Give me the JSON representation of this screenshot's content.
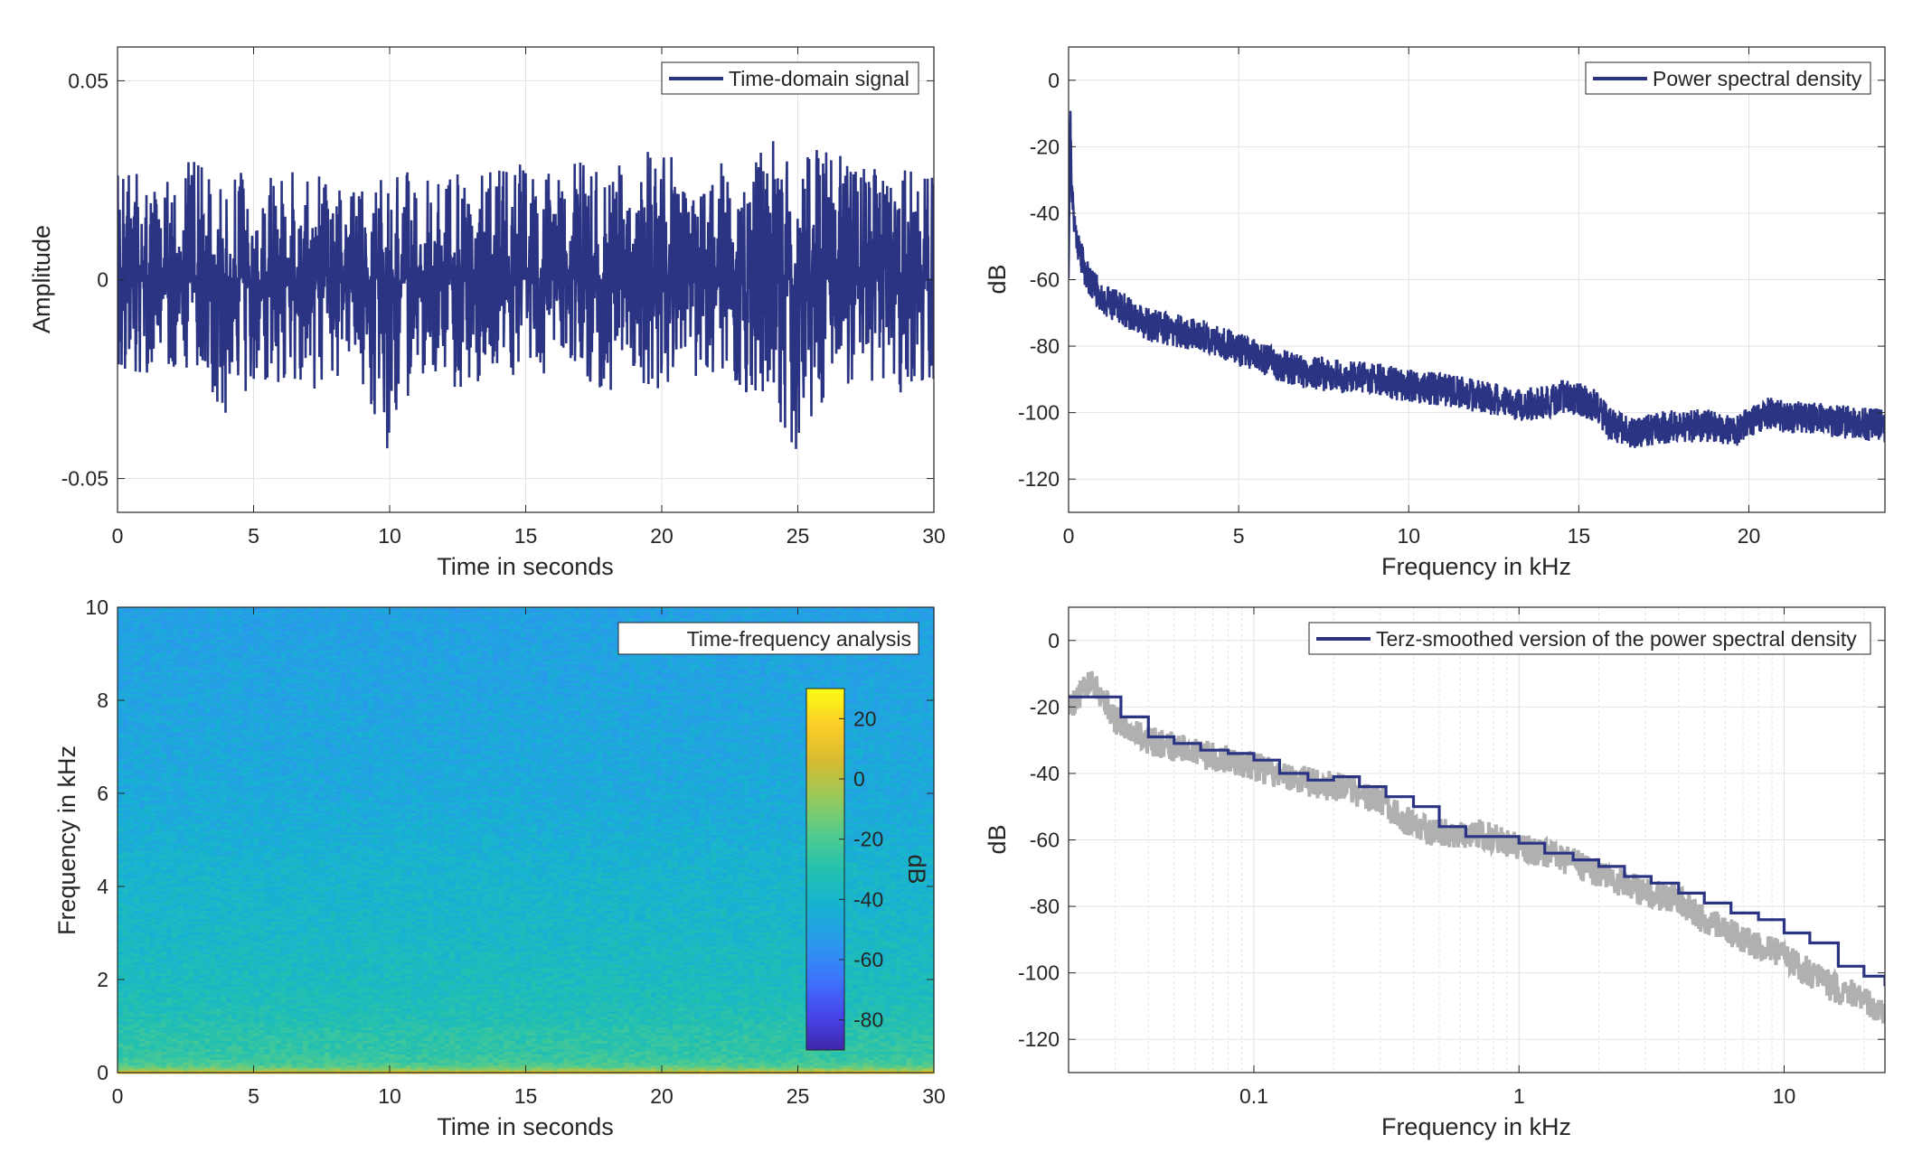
{
  "colors": {
    "series": "#2b3483",
    "raw": "#b0b0b0",
    "grid": "#e3e3e3",
    "axis": "#262626",
    "background": "#ffffff",
    "colormap": [
      "#3e26a8",
      "#4746eb",
      "#3d75fd",
      "#2a98ec",
      "#17b2d1",
      "#23c0b0",
      "#53cb8d",
      "#97ca5b",
      "#d5bb31",
      "#fbce28",
      "#f9fb15"
    ]
  },
  "chart_data": [
    {
      "id": "time-signal",
      "type": "line",
      "xlabel": "Time in seconds",
      "ylabel": "Amplitude",
      "xlim": [
        0,
        30
      ],
      "ylim": [
        -0.0585,
        0.0585
      ],
      "xticks": [
        0,
        5,
        10,
        15,
        20,
        25,
        30
      ],
      "xticklabels": [
        "0",
        "5",
        "10",
        "15",
        "20",
        "25",
        "30"
      ],
      "yticks": [
        -0.05,
        0,
        0.05
      ],
      "yticklabels": [
        "-0.05",
        "0",
        "0.05"
      ],
      "grid": true,
      "legend": "top-right",
      "series": [
        {
          "name": "Time-domain signal",
          "x": [
            0,
            1,
            2,
            3,
            4,
            5,
            6,
            7,
            8,
            9,
            10,
            11,
            12,
            13,
            14,
            15,
            16,
            17,
            18,
            19,
            20,
            21,
            22,
            23,
            24,
            25,
            26,
            27,
            28,
            29,
            30
          ],
          "envelope_max": [
            0.031,
            0.026,
            0.029,
            0.03,
            0.033,
            0.027,
            0.029,
            0.026,
            0.031,
            0.028,
            0.028,
            0.027,
            0.027,
            0.027,
            0.031,
            0.03,
            0.027,
            0.03,
            0.027,
            0.031,
            0.036,
            0.026,
            0.03,
            0.026,
            0.036,
            0.028,
            0.037,
            0.029,
            0.029,
            0.029,
            0.027
          ],
          "envelope_min": [
            -0.022,
            -0.024,
            -0.023,
            -0.027,
            -0.036,
            -0.025,
            -0.026,
            -0.027,
            -0.033,
            -0.026,
            -0.044,
            -0.026,
            -0.026,
            -0.029,
            -0.024,
            -0.024,
            -0.024,
            -0.025,
            -0.029,
            -0.025,
            -0.028,
            -0.025,
            -0.026,
            -0.029,
            -0.031,
            -0.048,
            -0.029,
            -0.026,
            -0.033,
            -0.027,
            -0.026
          ]
        }
      ]
    },
    {
      "id": "psd",
      "type": "line",
      "xlabel": "Frequency in kHz",
      "ylabel": "dB",
      "xlim": [
        0,
        24
      ],
      "ylim": [
        -130,
        10
      ],
      "xticks": [
        0,
        5,
        10,
        15,
        20
      ],
      "xticklabels": [
        "0",
        "5",
        "10",
        "15",
        "20"
      ],
      "yticks": [
        0,
        -20,
        -40,
        -60,
        -80,
        -100,
        -120
      ],
      "yticklabels": [
        "0",
        "-20",
        "-40",
        "-60",
        "-80",
        "-100",
        "-120"
      ],
      "grid": true,
      "legend": "top-right",
      "series": [
        {
          "name": "Power spectral density",
          "x": [
            0,
            0.05,
            0.1,
            0.2,
            0.3,
            0.5,
            0.8,
            1,
            1.5,
            2,
            2.5,
            3,
            3.5,
            4,
            4.5,
            5,
            6,
            7,
            8,
            9,
            10,
            11,
            12,
            12.5,
            13,
            14,
            14.5,
            15,
            15.5,
            16,
            16.5,
            17,
            18,
            19,
            19.5,
            20,
            20.5,
            21,
            22,
            23,
            24
          ],
          "y": [
            -57,
            -10,
            -35,
            -45,
            -50,
            -58,
            -63,
            -66,
            -68,
            -72,
            -74,
            -75,
            -76,
            -77,
            -79,
            -81,
            -85,
            -88,
            -89,
            -90,
            -92,
            -93,
            -95,
            -96,
            -98,
            -97,
            -95,
            -96,
            -98,
            -104,
            -106,
            -105,
            -104,
            -104,
            -106,
            -103,
            -100,
            -101,
            -102,
            -103,
            -104
          ],
          "band": 5
        }
      ]
    },
    {
      "id": "spectrogram",
      "type": "heatmap",
      "title": "Time-frequency analysis",
      "xlabel": "Time in seconds",
      "ylabel": "Frequency in kHz",
      "xlim": [
        0,
        30
      ],
      "ylim": [
        0,
        10
      ],
      "xticks": [
        0,
        5,
        10,
        15,
        20,
        25,
        30
      ],
      "xticklabels": [
        "0",
        "5",
        "10",
        "15",
        "20",
        "25",
        "30"
      ],
      "yticks": [
        0,
        2,
        4,
        6,
        8,
        10
      ],
      "yticklabels": [
        "0",
        "2",
        "4",
        "6",
        "8",
        "10"
      ],
      "colorbar": {
        "label": "dB",
        "clim": [
          -90,
          30
        ],
        "ticks": [
          20,
          0,
          -20,
          -40,
          -60,
          -80
        ],
        "ticklabels": [
          "20",
          "0",
          "-20",
          "-40",
          "-60",
          "-80"
        ]
      },
      "level_by_frequency": {
        "f": [
          0,
          0.05,
          0.1,
          0.2,
          0.4,
          0.8,
          1.2,
          2,
          3,
          4,
          4.5,
          5,
          6,
          8,
          10
        ],
        "dB": [
          10,
          -5,
          -15,
          -22,
          -26,
          -28,
          -32,
          -35,
          -38,
          -40,
          -41,
          -43,
          -46,
          -48,
          -50
        ]
      }
    },
    {
      "id": "terz-psd",
      "type": "line",
      "xlabel": "Frequency in kHz",
      "ylabel": "dB",
      "xscale": "log",
      "xlim": [
        0.02,
        24
      ],
      "ylim": [
        -130,
        10
      ],
      "xticks": [
        0.1,
        1,
        10
      ],
      "xticklabels": [
        "0.1",
        "1",
        "10"
      ],
      "yticks": [
        0,
        -20,
        -40,
        -60,
        -80,
        -100,
        -120
      ],
      "yticklabels": [
        "0",
        "-20",
        "-40",
        "-60",
        "-80",
        "-100",
        "-120"
      ],
      "grid": true,
      "legend": "top-right",
      "series": [
        {
          "x": [
            0.02,
            0.025,
            0.03,
            0.04,
            0.05,
            0.07,
            0.1,
            0.15,
            0.2,
            0.3,
            0.4,
            0.5,
            0.7,
            1,
            1.5,
            2,
            3,
            4,
            5,
            7,
            10,
            15,
            20,
            24
          ],
          "y": [
            -20,
            -12,
            -24,
            -30,
            -32,
            -35,
            -38,
            -42,
            -44,
            -48,
            -56,
            -58,
            -58,
            -62,
            -66,
            -70,
            -76,
            -78,
            -84,
            -90,
            -95,
            -104,
            -108,
            -112
          ]
        },
        {
          "name": "Terz-smoothed version of the power spectral density",
          "x": [
            0.02,
            0.025,
            0.0315,
            0.04,
            0.05,
            0.063,
            0.08,
            0.1,
            0.125,
            0.16,
            0.2,
            0.25,
            0.315,
            0.4,
            0.5,
            0.63,
            0.8,
            1,
            1.25,
            1.6,
            2,
            2.5,
            3.15,
            4,
            5,
            6.3,
            8,
            10,
            12.5,
            16,
            20,
            24
          ],
          "y": [
            -17,
            -17,
            -23,
            -29,
            -31,
            -33,
            -34,
            -36,
            -40,
            -42,
            -41,
            -44,
            -47,
            -50,
            -56,
            -59,
            -59,
            -61,
            -64,
            -66,
            -68,
            -71,
            -73,
            -76,
            -79,
            -82,
            -84,
            -88,
            -91,
            -98,
            -101,
            -104
          ]
        }
      ]
    }
  ]
}
